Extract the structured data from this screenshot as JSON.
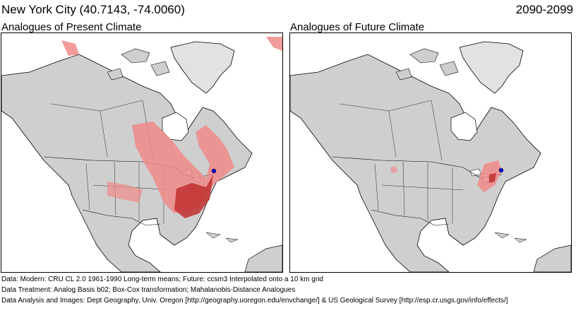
{
  "header": {
    "location": "New York City  (40.7143, -74.0060)",
    "period": "2090-2099"
  },
  "panels": [
    {
      "title": "Analogues of Present Climate"
    },
    {
      "title": "Analogues of Future Climate"
    }
  ],
  "footer": {
    "line1": "Data:  Modern: CRU CL 2.0 1961-1990 Long-term means; Future: ccsm3 Interpolated onto a 10 km grid",
    "line2": "Data Treatment:  Analog Basis b02; Box-Cox transformation; Mahalanobis-Distance Analogues",
    "line3": "Data Analysis and Images:  Dept Geography, Univ. Oregon [http://geography.uoregon.edu/envchange/] & US Geological Survey [http://esp.cr.usgs.gov/info/effects/]"
  },
  "colors": {
    "land": "#cfcfcf",
    "water": "#ffffff",
    "analog_light": "#f08a8a",
    "analog_dark": "#c0302f",
    "target": "#1010d0"
  }
}
